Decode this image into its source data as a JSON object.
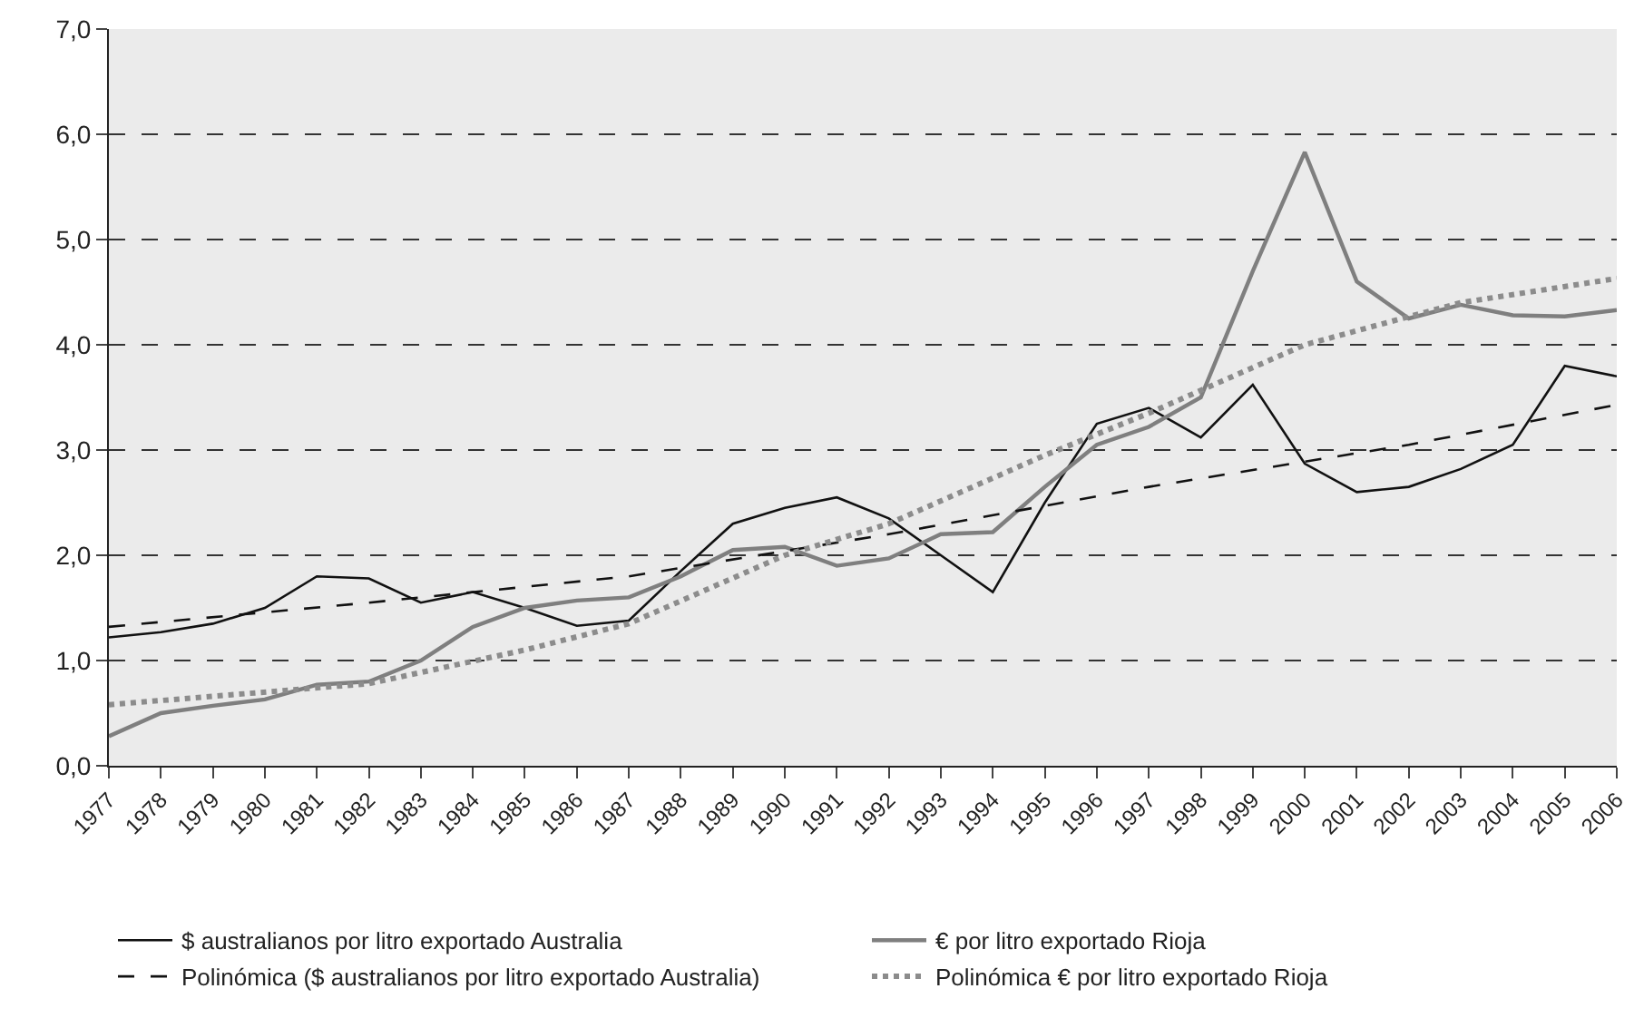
{
  "chart_data": {
    "type": "line",
    "x": [
      1977,
      1978,
      1979,
      1980,
      1981,
      1982,
      1983,
      1984,
      1985,
      1986,
      1987,
      1988,
      1989,
      1990,
      1991,
      1992,
      1993,
      1994,
      1995,
      1996,
      1997,
      1998,
      1999,
      2000,
      2001,
      2002,
      2003,
      2004,
      2005,
      2006
    ],
    "series": [
      {
        "name": "$ australianos por litro exportado Australia",
        "color": "#111111",
        "line_style": "solid",
        "values": [
          1.22,
          1.27,
          1.35,
          1.5,
          1.8,
          1.78,
          1.55,
          1.65,
          1.5,
          1.33,
          1.38,
          1.85,
          2.3,
          2.45,
          2.55,
          2.35,
          2.0,
          1.65,
          2.5,
          3.25,
          3.4,
          3.12,
          3.62,
          2.87,
          2.6,
          2.65,
          2.82,
          3.05,
          3.8,
          3.7
        ]
      },
      {
        "name": "€ por litro exportado Rioja",
        "color": "#7f7f7f",
        "line_style": "solid",
        "values": [
          0.28,
          0.5,
          0.57,
          0.63,
          0.77,
          0.8,
          1.0,
          1.32,
          1.5,
          1.57,
          1.6,
          1.8,
          2.05,
          2.08,
          1.9,
          1.97,
          2.2,
          2.22,
          2.65,
          3.05,
          3.22,
          3.5,
          4.7,
          5.83,
          4.6,
          4.25,
          4.38,
          4.28,
          4.27,
          4.33
        ]
      },
      {
        "name": "Polinómica ($ australianos por litro exportado Australia)",
        "color": "#111111",
        "line_style": "dashed",
        "x": [
          1977,
          1982,
          1987,
          1992,
          1997,
          2002,
          2006
        ],
        "values": [
          1.32,
          1.55,
          1.8,
          2.2,
          2.65,
          3.05,
          3.43
        ]
      },
      {
        "name": "Polinómica € por litro exportado Rioja",
        "color": "#8c8c8c",
        "line_style": "dotted",
        "x": [
          1977,
          1982,
          1985,
          1987,
          1990,
          1992,
          1995,
          1997,
          2000,
          2003,
          2006
        ],
        "values": [
          0.58,
          0.78,
          1.1,
          1.35,
          2.0,
          2.3,
          2.95,
          3.35,
          4.0,
          4.4,
          4.63
        ]
      }
    ],
    "xlim": [
      1977,
      2006
    ],
    "xticks": [
      1977,
      1978,
      1979,
      1980,
      1981,
      1982,
      1983,
      1984,
      1985,
      1986,
      1987,
      1988,
      1989,
      1990,
      1991,
      1992,
      1993,
      1994,
      1995,
      1996,
      1997,
      1998,
      1999,
      2000,
      2001,
      2002,
      2003,
      2004,
      2005,
      2006
    ],
    "ylim": [
      0,
      7
    ],
    "yticks": [
      {
        "value": 0,
        "label": "0,0"
      },
      {
        "value": 1,
        "label": "1,0"
      },
      {
        "value": 2,
        "label": "2,0"
      },
      {
        "value": 3,
        "label": "3,0"
      },
      {
        "value": 4,
        "label": "4,0"
      },
      {
        "value": 5,
        "label": "5,0"
      },
      {
        "value": 6,
        "label": "6,0"
      },
      {
        "value": 7,
        "label": "7,0"
      }
    ],
    "grid": "y",
    "legend": "bottom",
    "marker": "none"
  }
}
